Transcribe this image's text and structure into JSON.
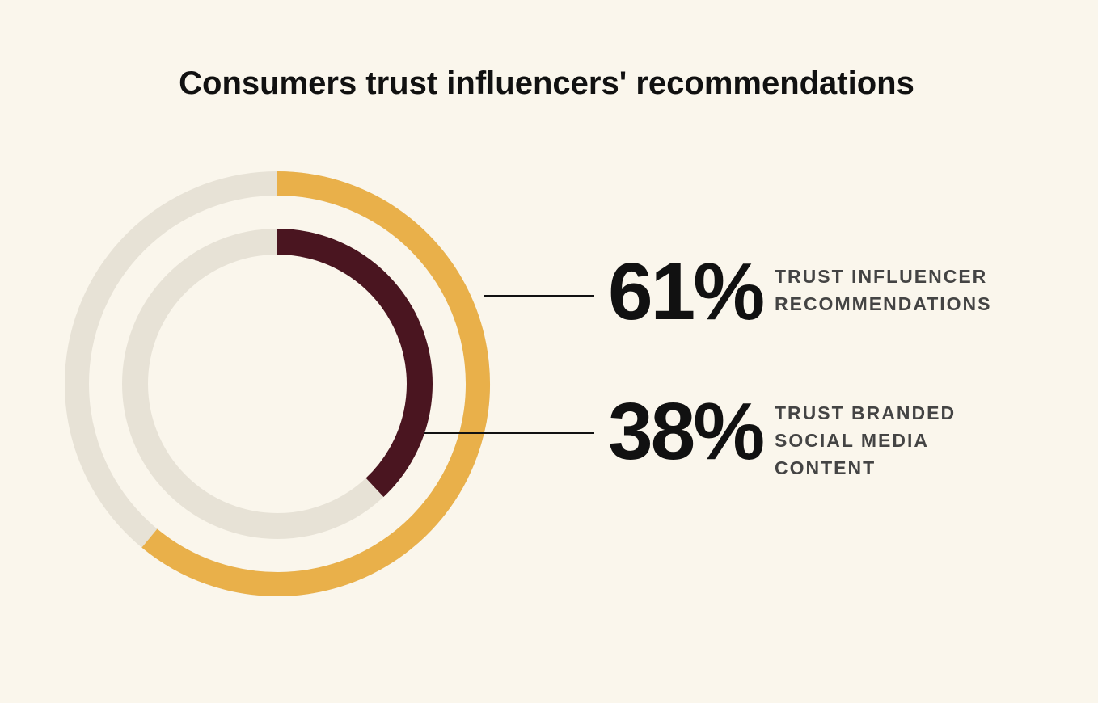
{
  "chart_data": {
    "type": "radial",
    "title": "Consumers trust influencers' recommendations",
    "ylim": [
      0,
      100
    ],
    "series": [
      {
        "name": [
          "TRUST INFLUENCER",
          "RECOMMENDATIONS"
        ],
        "value": 61,
        "value_label": "61%",
        "color": "#e9b04a"
      },
      {
        "name": [
          "TRUST BRANDED",
          "SOCIAL MEDIA",
          "CONTENT"
        ],
        "value": 38,
        "value_label": "38%",
        "color": "#4a1520"
      }
    ],
    "track_color": "#e7e2d6"
  }
}
